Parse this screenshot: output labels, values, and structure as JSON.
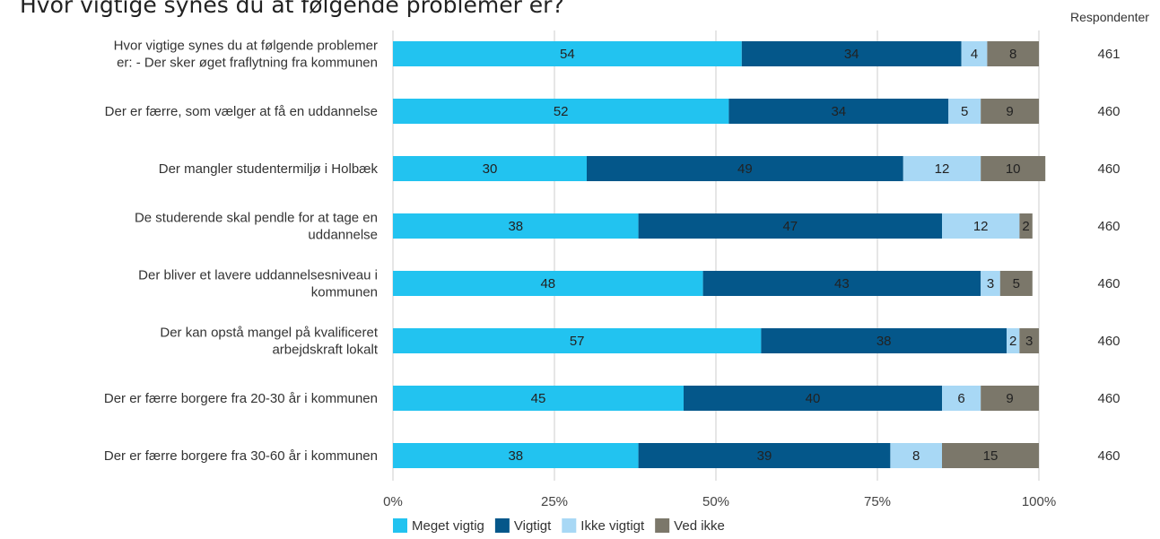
{
  "chart_data": {
    "type": "bar",
    "orientation": "horizontal",
    "stacked": true,
    "title": "Hvor vigtige synes du at følgende problemer er?",
    "categories": [
      "Hvor vigtige synes du at følgende problemer er:  - Der sker øget fraflytning fra kommunen",
      "Der er færre, som vælger at få en uddannelse",
      "Der mangler studentermiljø i Holbæk",
      "De studerende skal pendle for at tage en uddannelse",
      "Der bliver et lavere uddannelsesniveau i kommunen",
      "Der kan opstå mangel på kvalificeret arbejdskraft lokalt",
      "Der er færre borgere fra 20-30 år i kommunen",
      "Der er færre borgere fra 30-60 år i kommunen"
    ],
    "series": [
      {
        "name": "Meget vigtig",
        "color": "#22c3f0",
        "values": [
          54,
          52,
          30,
          38,
          48,
          57,
          45,
          38
        ]
      },
      {
        "name": "Vigtigt",
        "color": "#04578a",
        "values": [
          34,
          34,
          49,
          47,
          43,
          38,
          40,
          39
        ]
      },
      {
        "name": "Ikke vigtigt",
        "color": "#a8d8f5",
        "values": [
          4,
          5,
          12,
          12,
          3,
          2,
          6,
          8
        ]
      },
      {
        "name": "Ved ikke",
        "color": "#7b776a",
        "values": [
          8,
          9,
          10,
          2,
          5,
          3,
          9,
          15
        ]
      }
    ],
    "xlim": [
      0,
      100
    ],
    "xticks": [
      "0%",
      "25%",
      "50%",
      "75%",
      "100%"
    ],
    "respondents_header": "Respondenter",
    "respondents": [
      "461",
      "460",
      "460",
      "460",
      "460",
      "460",
      "460",
      "460"
    ],
    "grid": true,
    "legend_position": "bottom"
  }
}
